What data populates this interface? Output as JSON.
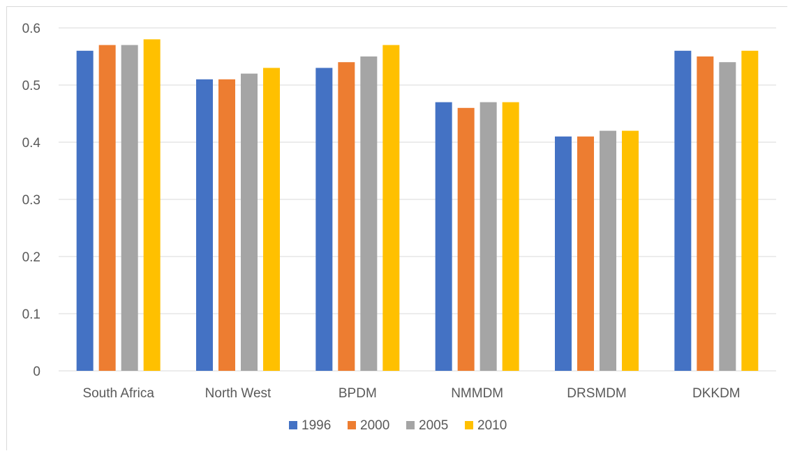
{
  "chart_data": {
    "type": "bar",
    "title": "",
    "xlabel": "",
    "ylabel": "",
    "ylim": [
      0,
      0.6
    ],
    "yticks": [
      "0",
      "0.1",
      "0.2",
      "0.3",
      "0.4",
      "0.5",
      "0.6"
    ],
    "grid": true,
    "legend_position": "bottom",
    "categories": [
      "South Africa",
      "North West",
      "BPDM",
      "NMMDM",
      "DRSMDM",
      "DKKDM"
    ],
    "series": [
      {
        "name": "1996",
        "color": "#4472C4",
        "values": [
          0.56,
          0.51,
          0.53,
          0.47,
          0.41,
          0.56
        ]
      },
      {
        "name": "2000",
        "color": "#ED7D31",
        "values": [
          0.57,
          0.51,
          0.54,
          0.46,
          0.41,
          0.55
        ]
      },
      {
        "name": "2005",
        "color": "#A5A5A5",
        "values": [
          0.57,
          0.52,
          0.55,
          0.47,
          0.42,
          0.54
        ]
      },
      {
        "name": "2010",
        "color": "#FFC000",
        "values": [
          0.58,
          0.53,
          0.57,
          0.47,
          0.42,
          0.56
        ]
      }
    ]
  }
}
